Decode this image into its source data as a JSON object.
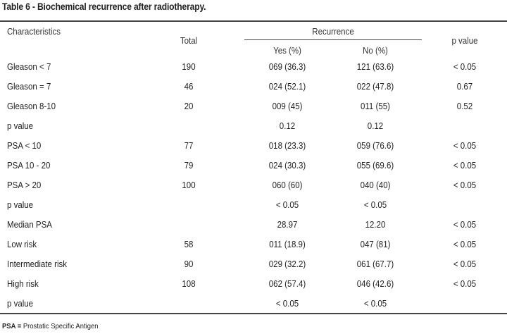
{
  "title": "Table 6 - Biochemical recurrence after radiotherapy.",
  "header": {
    "characteristics": "Characteristics",
    "total": "Total",
    "recurrence": "Recurrence",
    "yes": "Yes (%)",
    "no": "No (%)",
    "p_value": "p value"
  },
  "rows": [
    {
      "label": "Gleason < 7",
      "total": "190",
      "yes": "069 (36.3)",
      "no": "121 (63.6)",
      "p": "< 0.05"
    },
    {
      "label": "Gleason = 7",
      "total": "46",
      "yes": "024 (52.1)",
      "no": "022 (47.8)",
      "p": "0.67"
    },
    {
      "label": "Gleason 8-10",
      "total": "20",
      "yes": "009 (45)",
      "no": "011 (55)",
      "p": "0.52"
    },
    {
      "label": "p value",
      "total": "",
      "yes": "0.12",
      "no": "0.12",
      "p": ""
    },
    {
      "label": "PSA < 10",
      "total": "77",
      "yes": "018 (23.3)",
      "no": "059 (76.6)",
      "p": "< 0.05"
    },
    {
      "label": "PSA 10 - 20",
      "total": "79",
      "yes": "024 (30.3)",
      "no": "055 (69.6)",
      "p": "< 0.05"
    },
    {
      "label": "PSA > 20",
      "total": "100",
      "yes": "060 (60)",
      "no": "040 (40)",
      "p": "< 0.05"
    },
    {
      "label": "p value",
      "total": "",
      "yes": "< 0.05",
      "no": "< 0.05",
      "p": ""
    },
    {
      "label": "Median PSA",
      "total": "",
      "yes": "28.97",
      "no": "12.20",
      "p": "< 0.05"
    },
    {
      "label": "Low risk",
      "total": "58",
      "yes": "011 (18.9)",
      "no": "047 (81)",
      "p": "< 0.05"
    },
    {
      "label": "Intermediate risk",
      "total": "90",
      "yes": "029 (32.2)",
      "no": "061 (67.7)",
      "p": "< 0.05"
    },
    {
      "label": "High risk",
      "total": "108",
      "yes": "062 (57.4)",
      "no": "046 (42.6)",
      "p": "< 0.05"
    },
    {
      "label": "p value",
      "total": "",
      "yes": "< 0.05",
      "no": "< 0.05",
      "p": ""
    }
  ],
  "footnote": {
    "abbr": "PSA =",
    "text": " Prostatic Specific Antigen"
  }
}
